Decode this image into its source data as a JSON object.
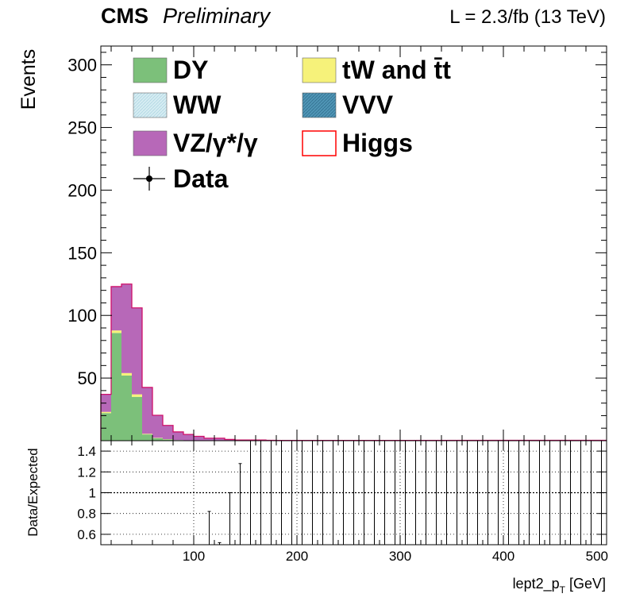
{
  "header": {
    "experiment": "CMS",
    "status": "Preliminary",
    "lumi": "L = 2.3/fb (13 TeV)"
  },
  "chart_data": [
    {
      "type": "bar",
      "stacked": true,
      "ylabel": "Events",
      "xlim": [
        10,
        500
      ],
      "ylim": [
        0,
        315
      ],
      "yticks": [
        50,
        100,
        150,
        200,
        250,
        300
      ],
      "x_bin_edges": [
        10,
        20,
        30,
        40,
        50,
        60,
        70,
        80,
        90,
        100,
        110,
        120,
        130,
        140,
        150,
        160,
        170,
        180,
        190,
        200
      ],
      "legend_placement": "top-left, two columns",
      "legend": [
        {
          "label": "DY",
          "color": "#7cc07a",
          "column": 0
        },
        {
          "label": "tW and t̄t",
          "color": "#f6f27a",
          "column": 1
        },
        {
          "label": "WW",
          "color": "#d6ecf2",
          "column": 0
        },
        {
          "label": "VVV",
          "color": "#4f95b5",
          "column": 1
        },
        {
          "label": "VZ/γ*/γ",
          "color": "#b768b8",
          "column": 0
        },
        {
          "label": "Higgs",
          "color": "#ffffff",
          "edge": "#ff0000",
          "column": 1
        },
        {
          "label": "Data",
          "marker": "point",
          "column": 0
        }
      ],
      "series": [
        {
          "name": "DY",
          "color": "#7cc07a",
          "values": [
            22,
            86,
            52,
            35,
            5,
            2,
            1,
            0.5,
            0,
            0,
            0,
            0,
            0,
            0,
            0,
            0,
            0,
            0,
            0
          ]
        },
        {
          "name": "tW and t̄t",
          "color": "#f6f27a",
          "values": [
            1,
            2,
            2,
            2,
            0.5,
            0.3,
            0.2,
            0,
            0,
            0,
            0,
            0,
            0,
            0,
            0,
            0,
            0,
            0,
            0
          ]
        },
        {
          "name": "VZ/γ*/γ",
          "color": "#b768b8",
          "values": [
            14,
            35,
            71,
            69,
            37,
            18,
            11,
            6.5,
            5,
            3.5,
            2,
            2,
            1,
            0.5,
            0.5,
            0.5,
            0.3,
            0.2,
            0.2
          ]
        }
      ]
    },
    {
      "type": "scatter",
      "ylabel": "Data/Expected",
      "xlabel_main": "lept2_p",
      "xlabel_sub": "T",
      "xlabel_unit": " [GeV]",
      "xlim": [
        10,
        500
      ],
      "ylim": [
        0.5,
        1.5
      ],
      "yticks": [
        0.6,
        0.8,
        1,
        1.2,
        1.4
      ],
      "ytick_labels": [
        "0.6",
        "0.8",
        "1",
        "1.2",
        "1.4"
      ],
      "xticks": [
        100,
        200,
        300,
        400,
        500
      ],
      "xtick_labels": [
        "100",
        "200",
        "300",
        "400",
        "500"
      ],
      "grid": true,
      "reference_line": 1,
      "error_bars": [
        {
          "x": 115,
          "lo": 0.5,
          "hi": 0.82
        },
        {
          "x": 125,
          "lo": 0.5,
          "hi": 0.52
        },
        {
          "x": 135,
          "lo": 0.5,
          "hi": 1.0
        },
        {
          "x": 145,
          "lo": 0.5,
          "hi": 1.28
        },
        {
          "x": 155,
          "lo": 0.5,
          "hi": 1.5
        },
        {
          "x": 165,
          "lo": 0.5,
          "hi": 1.5
        },
        {
          "x": 175,
          "lo": 0.5,
          "hi": 1.5
        },
        {
          "x": 185,
          "lo": 0.5,
          "hi": 1.5
        },
        {
          "x": 195,
          "lo": 0.5,
          "hi": 1.5
        },
        {
          "x": 205,
          "lo": 0.5,
          "hi": 1.5
        },
        {
          "x": 215,
          "lo": 0.5,
          "hi": 1.5
        },
        {
          "x": 225,
          "lo": 0.5,
          "hi": 1.5
        },
        {
          "x": 235,
          "lo": 0.5,
          "hi": 1.5
        },
        {
          "x": 245,
          "lo": 0.5,
          "hi": 1.5
        },
        {
          "x": 255,
          "lo": 0.5,
          "hi": 1.5
        },
        {
          "x": 265,
          "lo": 0.5,
          "hi": 1.5
        },
        {
          "x": 275,
          "lo": 0.5,
          "hi": 1.5
        },
        {
          "x": 285,
          "lo": 0.5,
          "hi": 1.5
        },
        {
          "x": 295,
          "lo": 0.5,
          "hi": 1.5
        },
        {
          "x": 305,
          "lo": 0.5,
          "hi": 1.5
        },
        {
          "x": 315,
          "lo": 0.5,
          "hi": 1.5
        },
        {
          "x": 325,
          "lo": 0.5,
          "hi": 1.5
        },
        {
          "x": 335,
          "lo": 0.5,
          "hi": 1.5
        },
        {
          "x": 345,
          "lo": 0.5,
          "hi": 1.5
        },
        {
          "x": 355,
          "lo": 0.5,
          "hi": 1.5
        },
        {
          "x": 365,
          "lo": 0.5,
          "hi": 1.5
        },
        {
          "x": 375,
          "lo": 0.5,
          "hi": 1.5
        },
        {
          "x": 385,
          "lo": 0.5,
          "hi": 1.5
        },
        {
          "x": 395,
          "lo": 0.5,
          "hi": 1.5
        },
        {
          "x": 405,
          "lo": 0.5,
          "hi": 1.5
        },
        {
          "x": 415,
          "lo": 0.5,
          "hi": 1.5
        },
        {
          "x": 425,
          "lo": 0.5,
          "hi": 1.5
        },
        {
          "x": 435,
          "lo": 0.5,
          "hi": 1.5
        },
        {
          "x": 445,
          "lo": 0.5,
          "hi": 1.5
        },
        {
          "x": 455,
          "lo": 0.5,
          "hi": 1.5
        },
        {
          "x": 465,
          "lo": 0.5,
          "hi": 1.5
        },
        {
          "x": 475,
          "lo": 0.5,
          "hi": 1.5
        },
        {
          "x": 485,
          "lo": 0.5,
          "hi": 1.5
        },
        {
          "x": 495,
          "lo": 0.5,
          "hi": 1.5
        }
      ]
    }
  ]
}
